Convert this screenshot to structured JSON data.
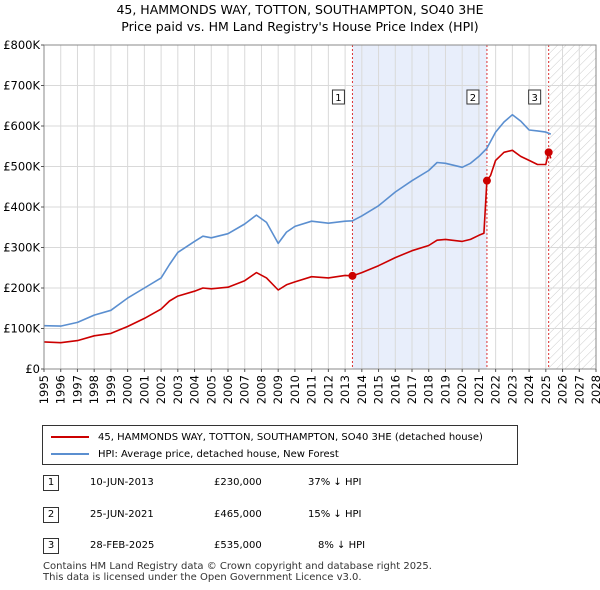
{
  "title_line1": "45, HAMMONDS WAY, TOTTON, SOUTHAMPTON, SO40 3HE",
  "title_line2": "Price paid vs. HM Land Registry's House Price Index (HPI)",
  "chart_data": {
    "type": "line",
    "xlim": [
      1995,
      2028
    ],
    "ylim": [
      0,
      800000
    ],
    "x_ticks": [
      "1995",
      "1996",
      "1997",
      "1998",
      "1999",
      "2000",
      "2001",
      "2002",
      "2003",
      "2004",
      "2005",
      "2006",
      "2007",
      "2008",
      "2009",
      "2010",
      "2011",
      "2012",
      "2013",
      "2014",
      "2015",
      "2016",
      "2017",
      "2018",
      "2019",
      "2020",
      "2021",
      "2022",
      "2023",
      "2024",
      "2025",
      "2026",
      "2027",
      "2028"
    ],
    "y_ticks": [
      {
        "value": 0,
        "label": "£0"
      },
      {
        "value": 100000,
        "label": "£100K"
      },
      {
        "value": 200000,
        "label": "£200K"
      },
      {
        "value": 300000,
        "label": "£300K"
      },
      {
        "value": 400000,
        "label": "£400K"
      },
      {
        "value": 500000,
        "label": "£500K"
      },
      {
        "value": 600000,
        "label": "£600K"
      },
      {
        "value": 700000,
        "label": "£700K"
      },
      {
        "value": 800000,
        "label": "£800K"
      }
    ],
    "grid": true,
    "shaded_region": {
      "from": 2013.44,
      "to": 2021.48
    },
    "future_hatch_from": 2025.17,
    "series": [
      {
        "name": "45, HAMMONDS WAY, TOTTON, SOUTHAMPTON, SO40 3HE (detached house)",
        "color": "#cc0000",
        "points": [
          [
            1995.0,
            67000
          ],
          [
            1996.0,
            65000
          ],
          [
            1997.0,
            70000
          ],
          [
            1998.0,
            82000
          ],
          [
            1999.0,
            88000
          ],
          [
            2000.0,
            105000
          ],
          [
            2001.0,
            125000
          ],
          [
            2002.0,
            148000
          ],
          [
            2002.5,
            168000
          ],
          [
            2003.0,
            180000
          ],
          [
            2004.0,
            192000
          ],
          [
            2004.5,
            200000
          ],
          [
            2005.0,
            198000
          ],
          [
            2006.0,
            202000
          ],
          [
            2007.0,
            218000
          ],
          [
            2007.7,
            238000
          ],
          [
            2008.3,
            225000
          ],
          [
            2009.0,
            195000
          ],
          [
            2009.5,
            208000
          ],
          [
            2010.0,
            215000
          ],
          [
            2011.0,
            228000
          ],
          [
            2012.0,
            225000
          ],
          [
            2013.0,
            231000
          ],
          [
            2013.44,
            230000
          ],
          [
            2014.0,
            238000
          ],
          [
            2015.0,
            255000
          ],
          [
            2016.0,
            275000
          ],
          [
            2017.0,
            292000
          ],
          [
            2018.0,
            305000
          ],
          [
            2018.5,
            318000
          ],
          [
            2019.0,
            320000
          ],
          [
            2020.0,
            315000
          ],
          [
            2020.5,
            320000
          ],
          [
            2021.0,
            330000
          ],
          [
            2021.3,
            335000
          ],
          [
            2021.48,
            465000
          ],
          [
            2021.7,
            478000
          ],
          [
            2022.0,
            515000
          ],
          [
            2022.5,
            535000
          ],
          [
            2023.0,
            540000
          ],
          [
            2023.5,
            525000
          ],
          [
            2024.0,
            515000
          ],
          [
            2024.5,
            505000
          ],
          [
            2025.0,
            505000
          ],
          [
            2025.17,
            535000
          ],
          [
            2025.3,
            520000
          ]
        ]
      },
      {
        "name": "HPI: Average price, detached house, New Forest",
        "color": "#5b8fd0",
        "points": [
          [
            1995.0,
            107000
          ],
          [
            1996.0,
            106000
          ],
          [
            1997.0,
            115000
          ],
          [
            1998.0,
            133000
          ],
          [
            1999.0,
            145000
          ],
          [
            2000.0,
            175000
          ],
          [
            2001.0,
            200000
          ],
          [
            2002.0,
            225000
          ],
          [
            2002.5,
            258000
          ],
          [
            2003.0,
            288000
          ],
          [
            2004.0,
            315000
          ],
          [
            2004.5,
            328000
          ],
          [
            2005.0,
            324000
          ],
          [
            2006.0,
            334000
          ],
          [
            2007.0,
            358000
          ],
          [
            2007.7,
            380000
          ],
          [
            2008.3,
            362000
          ],
          [
            2009.0,
            310000
          ],
          [
            2009.5,
            338000
          ],
          [
            2010.0,
            352000
          ],
          [
            2011.0,
            365000
          ],
          [
            2012.0,
            360000
          ],
          [
            2013.0,
            365000
          ],
          [
            2013.44,
            366000
          ],
          [
            2014.0,
            378000
          ],
          [
            2015.0,
            403000
          ],
          [
            2016.0,
            437000
          ],
          [
            2017.0,
            465000
          ],
          [
            2018.0,
            490000
          ],
          [
            2018.5,
            510000
          ],
          [
            2019.0,
            508000
          ],
          [
            2020.0,
            498000
          ],
          [
            2020.5,
            508000
          ],
          [
            2021.0,
            525000
          ],
          [
            2021.48,
            545000
          ],
          [
            2022.0,
            585000
          ],
          [
            2022.5,
            610000
          ],
          [
            2023.0,
            628000
          ],
          [
            2023.5,
            612000
          ],
          [
            2024.0,
            590000
          ],
          [
            2024.5,
            588000
          ],
          [
            2025.0,
            585000
          ],
          [
            2025.3,
            580000
          ]
        ]
      }
    ],
    "sales": [
      {
        "id": "1",
        "x": 2013.44,
        "y": 230000
      },
      {
        "id": "2",
        "x": 2021.48,
        "y": 465000
      },
      {
        "id": "3",
        "x": 2025.17,
        "y": 535000
      }
    ]
  },
  "legend": {
    "property_label": "45, HAMMONDS WAY, TOTTON, SOUTHAMPTON, SO40 3HE (detached house)",
    "hpi_label": "HPI: Average price, detached house, New Forest"
  },
  "annotations": [
    {
      "id": "1",
      "date": "10-JUN-2013",
      "price": "£230,000",
      "hpi": "37% ↓ HPI"
    },
    {
      "id": "2",
      "date": "25-JUN-2021",
      "price": "£465,000",
      "hpi": "15% ↓ HPI"
    },
    {
      "id": "3",
      "date": "28-FEB-2025",
      "price": "£535,000",
      "hpi": "8% ↓ HPI"
    }
  ],
  "footer": {
    "line1": "Contains HM Land Registry data © Crown copyright and database right 2025.",
    "line2": "This data is licensed under the Open Government Licence v3.0."
  }
}
